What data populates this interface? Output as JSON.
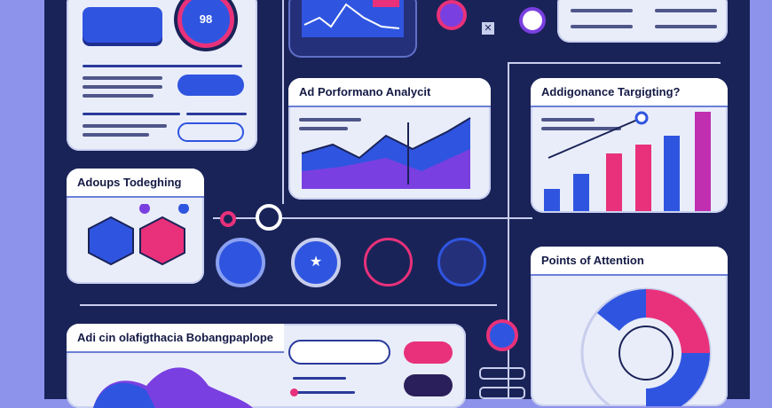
{
  "gauge": {
    "value": "98"
  },
  "cards": {
    "ad_performance": {
      "title": "Ad Porformano Analycit"
    },
    "targeting": {
      "title": "Addigonance Targigting?"
    },
    "adoups": {
      "title": "Adoups Todeghing"
    },
    "attention": {
      "title": "Points of Attention"
    },
    "bottom": {
      "title": "Adi cin olafigthacia Bobangpaplope"
    }
  },
  "colors": {
    "background": "#1a2358",
    "accent_blue": "#2f55e0",
    "accent_pink": "#e8317a",
    "accent_purple": "#7a3fe0",
    "card": "#e9edf9"
  },
  "icons": [
    "gauge-icon",
    "map-pin-icon",
    "close-icon",
    "hexagon-icon",
    "star-icon",
    "lock-icon",
    "rocket-icon",
    "search-icon"
  ]
}
